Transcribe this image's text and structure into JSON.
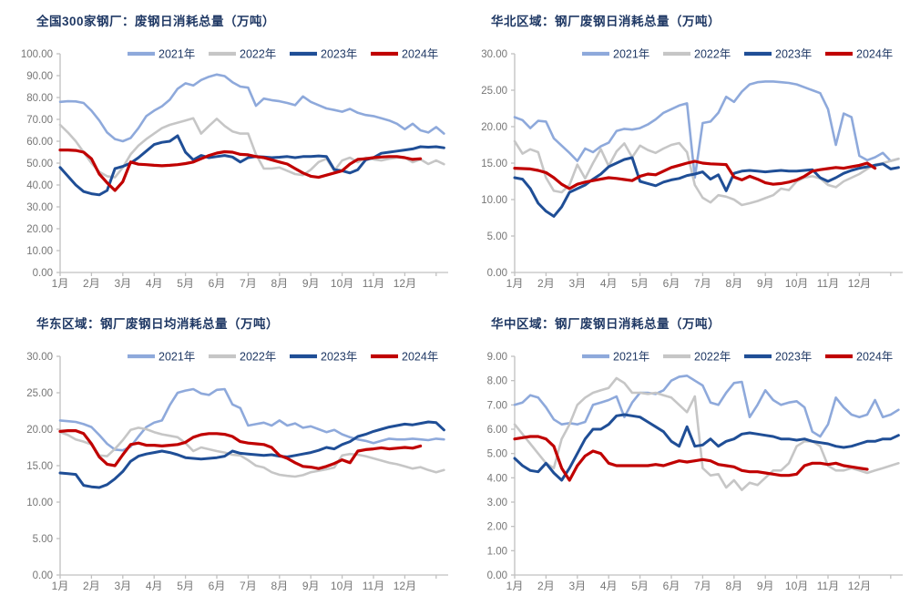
{
  "page": {
    "background": "#FFFFFF"
  },
  "colors": {
    "title_text": "#1F3864",
    "legend_text": "#1F3864",
    "axis_line": "#C0C0C0",
    "axis_text": "#767676"
  },
  "x_labels": [
    "1月",
    "2月",
    "3月",
    "4月",
    "5月",
    "6月",
    "7月",
    "8月",
    "9月",
    "10月",
    "11月",
    "12月"
  ],
  "chart_data": [
    {
      "type": "line",
      "title": "全国300家钢厂：废钢日消耗总量（万吨）",
      "ylim": [
        0,
        100
      ],
      "ystep": 10,
      "ydecimals": 2,
      "x_unit": "month (weekly points)",
      "grid": false,
      "legend_position": "top",
      "series": [
        {
          "name": "2021年",
          "color": "#8EA9DB",
          "width": 2.6,
          "values": [
            78,
            78.3,
            78.2,
            77.5,
            74,
            69.5,
            64,
            61,
            60,
            61.5,
            66,
            71.5,
            74,
            76,
            79,
            84,
            86.5,
            85.5,
            88,
            89.5,
            90.5,
            89.8,
            87,
            85,
            84.5,
            76.2,
            79.5,
            78.8,
            78.3,
            77.5,
            76.5,
            80.5,
            78,
            76.5,
            75,
            74.3,
            73.5,
            74.8,
            73,
            72,
            71.5,
            70.5,
            69.5,
            68,
            65.5,
            68,
            65,
            64,
            66.5,
            63.5
          ]
        },
        {
          "name": "2022年",
          "color": "#C6C6C6",
          "width": 2.6,
          "values": [
            67.5,
            64,
            60,
            55,
            50,
            46,
            44,
            43.5,
            48,
            54,
            58,
            61,
            63.5,
            66,
            67.5,
            68.5,
            69.5,
            70.5,
            63.5,
            67,
            70.3,
            67,
            64.5,
            63.5,
            63.5,
            54,
            47.5,
            47.5,
            48,
            46.5,
            45,
            44.5,
            47,
            50.5,
            52,
            46.5,
            51.2,
            52.5,
            50.4,
            52.5,
            51.7,
            51.2,
            52,
            52.5,
            52.5,
            50.4,
            51.7,
            49.6,
            51.2,
            49.5
          ]
        },
        {
          "name": "2023年",
          "color": "#1F4E96",
          "width": 3,
          "values": [
            48,
            44,
            40,
            37,
            36,
            35.5,
            37.5,
            47.5,
            48.5,
            50,
            52.5,
            55.5,
            58.5,
            59.5,
            60,
            62.5,
            55,
            51.5,
            53.5,
            52.5,
            53,
            53.5,
            52.8,
            50.5,
            52.5,
            53,
            52.8,
            52.5,
            52.7,
            53,
            52.5,
            53,
            53,
            53.3,
            53,
            47,
            46.5,
            45.5,
            47,
            51.5,
            52.5,
            54.5,
            55,
            55.5,
            56,
            56.5,
            57.5,
            57.3,
            57.5,
            57
          ]
        },
        {
          "name": "2024年",
          "color": "#C00000",
          "width": 3.2,
          "values": [
            56,
            56,
            55.8,
            55,
            52,
            45,
            41,
            37.5,
            41.5,
            50.5,
            49.5,
            49.3,
            49,
            48.8,
            49,
            49.3,
            49.8,
            50.5,
            52,
            53.5,
            54.6,
            55.2,
            55,
            54,
            53.8,
            53,
            52.5,
            51.5,
            50.5,
            49.6,
            47.5,
            45.5,
            44,
            43.5,
            44.5,
            45.5,
            46.5,
            49.6,
            51.7,
            52,
            52.5,
            52.8,
            53,
            53,
            52.5,
            51.7,
            52
          ]
        }
      ]
    },
    {
      "type": "line",
      "title": "华北区域：钢厂废钢日消耗总量（万吨）",
      "ylim": [
        0,
        30
      ],
      "ystep": 5,
      "ydecimals": 2,
      "x_unit": "month (weekly points)",
      "grid": false,
      "legend_position": "top",
      "series": [
        {
          "name": "2021年",
          "color": "#8EA9DB",
          "width": 2.6,
          "values": [
            21.3,
            20.9,
            19.8,
            20.8,
            20.7,
            18.4,
            17.4,
            16.4,
            15.3,
            17,
            16.5,
            17.3,
            17.8,
            19.4,
            19.7,
            19.6,
            19.8,
            20.3,
            21,
            21.9,
            22.4,
            22.9,
            23.2,
            13,
            20.5,
            20.7,
            21.9,
            24.1,
            23.4,
            24.8,
            25.8,
            26.1,
            26.2,
            26.2,
            26.1,
            26,
            25.8,
            25.4,
            25,
            24.6,
            22.4,
            17.5,
            21.8,
            21.3,
            16,
            15.4,
            15.8,
            16.4,
            15.3,
            15.6
          ]
        },
        {
          "name": "2022年",
          "color": "#C6C6C6",
          "width": 2.6,
          "values": [
            18,
            16.3,
            16.9,
            16.5,
            13,
            11.2,
            11,
            12,
            14.8,
            12.9,
            15,
            16.9,
            14.6,
            16.6,
            17.7,
            15.8,
            17.4,
            16.8,
            16.4,
            17,
            17.5,
            17.75,
            16.5,
            12,
            10.25,
            9.6,
            10.6,
            10.4,
            10,
            9.25,
            9.5,
            9.8,
            10.2,
            10.6,
            11.5,
            11.3,
            12.5,
            13,
            13.2,
            12.9,
            12,
            11.7,
            12.5,
            13,
            13.5,
            14.2,
            14.8,
            15,
            15.3,
            15.6
          ]
        },
        {
          "name": "2023年",
          "color": "#1F4E96",
          "width": 3,
          "values": [
            13,
            12.8,
            11.5,
            9.5,
            8.4,
            7.7,
            9,
            11,
            11.5,
            12,
            12.8,
            13.5,
            14.5,
            15,
            15.5,
            15.75,
            12.5,
            12.2,
            11.9,
            12.4,
            12.7,
            12.9,
            13.3,
            13.5,
            13.8,
            12.8,
            13.4,
            11.2,
            13.6,
            13.9,
            14,
            13.9,
            13.8,
            13.9,
            14,
            13.9,
            13.9,
            14,
            14.1,
            13,
            12.5,
            13,
            13.6,
            14,
            14.3,
            14.5,
            14.7,
            14.9,
            14.2,
            14.4
          ]
        },
        {
          "name": "2024年",
          "color": "#C00000",
          "width": 3.2,
          "values": [
            14.3,
            14.25,
            14.2,
            14,
            13.7,
            13,
            12.1,
            11.5,
            12.1,
            12.4,
            12.6,
            12.8,
            13,
            12.9,
            12.75,
            12.6,
            13.2,
            13.5,
            13.4,
            13.9,
            14.4,
            14.7,
            15,
            15.25,
            15,
            14.9,
            14.85,
            14.8,
            13.1,
            12.7,
            13.2,
            12.8,
            12.3,
            12.1,
            12.2,
            12.4,
            12.7,
            13.2,
            13.9,
            14.1,
            14.25,
            14.4,
            14.3,
            14.5,
            14.7,
            15,
            14.3
          ]
        }
      ]
    },
    {
      "type": "line",
      "title": "华东区域：钢厂废钢日均消耗总量（万吨）",
      "ylim": [
        0,
        30
      ],
      "ystep": 5,
      "ydecimals": 2,
      "x_unit": "month (weekly points)",
      "grid": false,
      "legend_position": "top",
      "series": [
        {
          "name": "2021年",
          "color": "#8EA9DB",
          "width": 2.6,
          "values": [
            21.2,
            21.1,
            21,
            20.7,
            20.3,
            19.2,
            18,
            17.2,
            17.1,
            17.6,
            19,
            20.3,
            20.9,
            21.2,
            23.3,
            25,
            25.3,
            25.5,
            24.9,
            24.7,
            25.4,
            25.5,
            23.4,
            22.9,
            20.5,
            20.7,
            20.9,
            20.5,
            21.2,
            20.5,
            20.8,
            20.2,
            20.4,
            20,
            19.6,
            19.9,
            19.3,
            18.9,
            18.6,
            18.4,
            18.1,
            18.4,
            18.7,
            18.6,
            18.6,
            18.7,
            18.6,
            18.5,
            18.7,
            18.6
          ]
        },
        {
          "name": "2022年",
          "color": "#C6C6C6",
          "width": 2.6,
          "values": [
            19.6,
            19.2,
            18.6,
            18.3,
            17.9,
            16.4,
            16.3,
            17.3,
            18.5,
            19.9,
            20.2,
            20,
            19.6,
            19.3,
            19.1,
            18.9,
            18.1,
            17,
            17.5,
            17.25,
            17,
            16.8,
            16.5,
            16.4,
            15.75,
            15,
            14.75,
            14.1,
            13.75,
            13.6,
            13.5,
            13.7,
            14.1,
            14.3,
            14.5,
            14.75,
            16.4,
            16.6,
            16.5,
            16.3,
            16,
            15.7,
            15.4,
            15.2,
            14.9,
            14.6,
            14.8,
            14.4,
            14.1,
            14.4
          ]
        },
        {
          "name": "2023年",
          "color": "#1F4E96",
          "width": 3,
          "values": [
            14,
            13.9,
            13.8,
            12.3,
            12.1,
            12,
            12.4,
            13.2,
            14.2,
            15.6,
            16.3,
            16.6,
            16.8,
            17,
            16.8,
            16.5,
            16.1,
            16,
            15.9,
            16,
            16.1,
            16.3,
            17,
            16.7,
            16.6,
            16.5,
            16.4,
            16.5,
            16.3,
            16.2,
            16.4,
            16.6,
            16.8,
            17.1,
            17.5,
            17.3,
            17.9,
            18.3,
            19,
            19.3,
            19.7,
            20,
            20.3,
            20.5,
            20.7,
            20.6,
            20.8,
            21,
            20.9,
            19.9
          ]
        },
        {
          "name": "2024年",
          "color": "#C00000",
          "width": 3.2,
          "values": [
            19.7,
            19.8,
            19.8,
            19.4,
            18,
            16.2,
            15.2,
            15,
            16.5,
            17.9,
            18.1,
            17.8,
            17.8,
            17.7,
            17.8,
            17.9,
            18.2,
            18.9,
            19.25,
            19.4,
            19.4,
            19.3,
            19,
            18.3,
            18.1,
            18,
            17.9,
            17.5,
            16.4,
            16,
            15.4,
            14.9,
            14.8,
            14.6,
            14.9,
            15.3,
            15.8,
            15.4,
            17,
            17.2,
            17.3,
            17.45,
            17.3,
            17.4,
            17.5,
            17.4,
            17.7
          ]
        }
      ]
    },
    {
      "type": "line",
      "title": "华中区域：钢厂废钢日消耗总量（万吨）",
      "ylim": [
        0,
        9
      ],
      "ystep": 1,
      "ydecimals": 2,
      "x_unit": "month (weekly points)",
      "grid": false,
      "legend_position": "top",
      "series": [
        {
          "name": "2021年",
          "color": "#8EA9DB",
          "width": 2.6,
          "values": [
            7,
            7.1,
            7.4,
            7.3,
            6.9,
            6.4,
            6.2,
            6.25,
            6.2,
            6.3,
            7,
            7.1,
            7.2,
            7.35,
            6.5,
            7.1,
            7.5,
            7.5,
            7.45,
            7.6,
            8,
            8.16,
            8.2,
            8,
            7.8,
            7.1,
            7,
            7.5,
            7.9,
            7.95,
            6.5,
            7,
            7.6,
            7.2,
            7,
            7.1,
            7.15,
            6.9,
            5.9,
            5.7,
            6.2,
            7.3,
            6.9,
            6.6,
            6.5,
            6.6,
            7.2,
            6.5,
            6.6,
            6.8
          ]
        },
        {
          "name": "2022年",
          "color": "#C6C6C6",
          "width": 2.6,
          "values": [
            6.2,
            5.8,
            5.4,
            5,
            4.6,
            4.4,
            5.6,
            6.2,
            7,
            7.3,
            7.5,
            7.6,
            7.7,
            8.1,
            7.9,
            7.5,
            7.5,
            7.45,
            7.5,
            7.4,
            7.3,
            7,
            6.7,
            7.35,
            4.4,
            4.1,
            4.15,
            3.6,
            3.9,
            3.5,
            3.8,
            3.7,
            4,
            4.3,
            4.3,
            4.6,
            5.3,
            5.5,
            5.5,
            5.3,
            4.5,
            4.3,
            4.3,
            4.4,
            4.3,
            4.2,
            4.3,
            4.4,
            4.5,
            4.6
          ]
        },
        {
          "name": "2023年",
          "color": "#1F4E96",
          "width": 3,
          "values": [
            4.8,
            4.5,
            4.3,
            4.25,
            4.6,
            4.2,
            3.9,
            4.4,
            5,
            5.6,
            6,
            6,
            6.2,
            6.55,
            6.6,
            6.55,
            6.5,
            6.3,
            6.1,
            5.9,
            5.5,
            5.3,
            6.1,
            5.3,
            5.35,
            5.6,
            5.3,
            5.5,
            5.6,
            5.8,
            5.85,
            5.8,
            5.75,
            5.7,
            5.6,
            5.6,
            5.55,
            5.6,
            5.5,
            5.45,
            5.4,
            5.3,
            5.25,
            5.3,
            5.4,
            5.5,
            5.5,
            5.6,
            5.6,
            5.75
          ]
        },
        {
          "name": "2024年",
          "color": "#C00000",
          "width": 3.2,
          "values": [
            5.6,
            5.65,
            5.7,
            5.7,
            5.6,
            5.3,
            4.4,
            3.9,
            4.5,
            4.9,
            5.1,
            5,
            4.6,
            4.5,
            4.5,
            4.5,
            4.5,
            4.5,
            4.55,
            4.5,
            4.6,
            4.7,
            4.65,
            4.7,
            4.75,
            4.7,
            4.55,
            4.5,
            4.45,
            4.3,
            4.25,
            4.25,
            4.2,
            4.15,
            4.1,
            4.1,
            4.15,
            4.5,
            4.6,
            4.6,
            4.55,
            4.6,
            4.5,
            4.45,
            4.4,
            4.35
          ]
        }
      ]
    }
  ]
}
